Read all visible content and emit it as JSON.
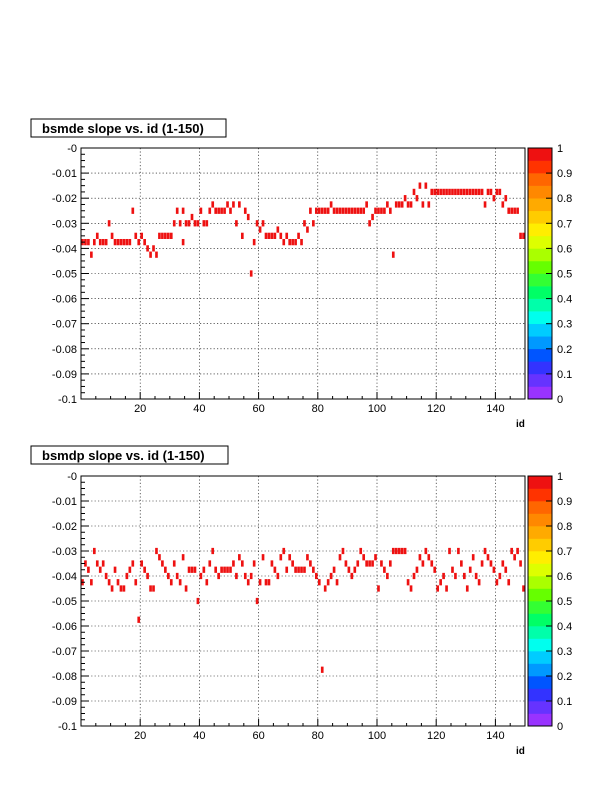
{
  "chart_data": [
    {
      "type": "heatmap",
      "title": "bsmde slope vs. id (1-150)",
      "xlabel": "id",
      "ylabel": "",
      "xlim": [
        0,
        150
      ],
      "ylim": [
        -0.1,
        0
      ],
      "x_ticks": [
        20,
        40,
        60,
        80,
        100,
        120,
        140
      ],
      "x_tick_labels": [
        "20",
        "40",
        "60",
        "80",
        "100",
        "120",
        "140"
      ],
      "y_ticks": [
        0,
        -0.01,
        -0.02,
        -0.03,
        -0.04,
        -0.05,
        -0.06,
        -0.07,
        -0.08,
        -0.09,
        -0.1
      ],
      "y_tick_labels": [
        "-0",
        "-0.01",
        "-0.02",
        "-0.03",
        "-0.04",
        "-0.05",
        "-0.06",
        "-0.07",
        "-0.08",
        "-0.09",
        "-0.1"
      ],
      "y_bin_width": 0.0025,
      "grid": true,
      "colorbar": {
        "range": [
          0,
          1
        ],
        "labels": [
          "0",
          "0.1",
          "0.2",
          "0.3",
          "0.4",
          "0.5",
          "0.6",
          "0.7",
          "0.8",
          "0.9",
          "1"
        ]
      },
      "cell_color": "#ee1111",
      "points": [
        [
          1,
          -0.0375
        ],
        [
          2,
          -0.0375
        ],
        [
          3,
          -0.0375
        ],
        [
          4,
          -0.0425
        ],
        [
          5,
          -0.0375
        ],
        [
          6,
          -0.035
        ],
        [
          7,
          -0.0375
        ],
        [
          8,
          -0.0375
        ],
        [
          9,
          -0.0375
        ],
        [
          10,
          -0.03
        ],
        [
          11,
          -0.035
        ],
        [
          12,
          -0.0375
        ],
        [
          13,
          -0.0375
        ],
        [
          14,
          -0.0375
        ],
        [
          15,
          -0.0375
        ],
        [
          16,
          -0.0375
        ],
        [
          17,
          -0.0375
        ],
        [
          18,
          -0.025
        ],
        [
          19,
          -0.035
        ],
        [
          20,
          -0.0375
        ],
        [
          21,
          -0.035
        ],
        [
          22,
          -0.0375
        ],
        [
          23,
          -0.04
        ],
        [
          24,
          -0.0425
        ],
        [
          25,
          -0.04
        ],
        [
          26,
          -0.0425
        ],
        [
          27,
          -0.035
        ],
        [
          28,
          -0.035
        ],
        [
          29,
          -0.035
        ],
        [
          30,
          -0.035
        ],
        [
          31,
          -0.035
        ],
        [
          32,
          -0.03
        ],
        [
          33,
          -0.025
        ],
        [
          34,
          -0.03
        ],
        [
          35,
          -0.025
        ],
        [
          35,
          -0.0375
        ],
        [
          36,
          -0.03
        ],
        [
          37,
          -0.03
        ],
        [
          38,
          -0.0275
        ],
        [
          39,
          -0.03
        ],
        [
          40,
          -0.03
        ],
        [
          41,
          -0.025
        ],
        [
          42,
          -0.03
        ],
        [
          43,
          -0.03
        ],
        [
          44,
          -0.025
        ],
        [
          45,
          -0.0225
        ],
        [
          46,
          -0.025
        ],
        [
          47,
          -0.025
        ],
        [
          48,
          -0.025
        ],
        [
          49,
          -0.025
        ],
        [
          50,
          -0.0225
        ],
        [
          51,
          -0.025
        ],
        [
          52,
          -0.0225
        ],
        [
          53,
          -0.03
        ],
        [
          54,
          -0.0225
        ],
        [
          55,
          -0.035
        ],
        [
          56,
          -0.025
        ],
        [
          57,
          -0.0275
        ],
        [
          58,
          -0.05
        ],
        [
          59,
          -0.0375
        ],
        [
          60,
          -0.03
        ],
        [
          61,
          -0.0325
        ],
        [
          62,
          -0.03
        ],
        [
          63,
          -0.035
        ],
        [
          64,
          -0.035
        ],
        [
          65,
          -0.035
        ],
        [
          66,
          -0.035
        ],
        [
          67,
          -0.0325
        ],
        [
          68,
          -0.035
        ],
        [
          69,
          -0.0375
        ],
        [
          70,
          -0.035
        ],
        [
          71,
          -0.0375
        ],
        [
          72,
          -0.0375
        ],
        [
          73,
          -0.0375
        ],
        [
          74,
          -0.035
        ],
        [
          75,
          -0.0375
        ],
        [
          76,
          -0.03
        ],
        [
          77,
          -0.0325
        ],
        [
          78,
          -0.025
        ],
        [
          79,
          -0.03
        ],
        [
          80,
          -0.025
        ],
        [
          81,
          -0.025
        ],
        [
          82,
          -0.025
        ],
        [
          83,
          -0.025
        ],
        [
          84,
          -0.025
        ],
        [
          85,
          -0.0225
        ],
        [
          86,
          -0.025
        ],
        [
          87,
          -0.025
        ],
        [
          88,
          -0.025
        ],
        [
          89,
          -0.025
        ],
        [
          90,
          -0.025
        ],
        [
          91,
          -0.025
        ],
        [
          92,
          -0.025
        ],
        [
          93,
          -0.025
        ],
        [
          94,
          -0.025
        ],
        [
          95,
          -0.025
        ],
        [
          96,
          -0.025
        ],
        [
          97,
          -0.0225
        ],
        [
          98,
          -0.03
        ],
        [
          99,
          -0.0275
        ],
        [
          100,
          -0.025
        ],
        [
          101,
          -0.025
        ],
        [
          102,
          -0.025
        ],
        [
          103,
          -0.025
        ],
        [
          104,
          -0.0225
        ],
        [
          105,
          -0.025
        ],
        [
          106,
          -0.0425
        ],
        [
          107,
          -0.0225
        ],
        [
          108,
          -0.0225
        ],
        [
          109,
          -0.0225
        ],
        [
          110,
          -0.02
        ],
        [
          111,
          -0.0225
        ],
        [
          112,
          -0.0225
        ],
        [
          113,
          -0.0175
        ],
        [
          114,
          -0.02
        ],
        [
          115,
          -0.015
        ],
        [
          116,
          -0.0225
        ],
        [
          117,
          -0.015
        ],
        [
          118,
          -0.0225
        ],
        [
          119,
          -0.0175
        ],
        [
          120,
          -0.0175
        ],
        [
          121,
          -0.0175
        ],
        [
          122,
          -0.0175
        ],
        [
          123,
          -0.0175
        ],
        [
          124,
          -0.0175
        ],
        [
          125,
          -0.0175
        ],
        [
          126,
          -0.0175
        ],
        [
          127,
          -0.0175
        ],
        [
          128,
          -0.0175
        ],
        [
          129,
          -0.0175
        ],
        [
          130,
          -0.0175
        ],
        [
          131,
          -0.0175
        ],
        [
          132,
          -0.0175
        ],
        [
          133,
          -0.0175
        ],
        [
          134,
          -0.0175
        ],
        [
          135,
          -0.0175
        ],
        [
          136,
          -0.0175
        ],
        [
          137,
          -0.0225
        ],
        [
          138,
          -0.0175
        ],
        [
          139,
          -0.0175
        ],
        [
          140,
          -0.02
        ],
        [
          141,
          -0.0175
        ],
        [
          142,
          -0.0175
        ],
        [
          143,
          -0.0225
        ],
        [
          144,
          -0.02
        ],
        [
          145,
          -0.025
        ],
        [
          146,
          -0.025
        ],
        [
          147,
          -0.025
        ],
        [
          148,
          -0.025
        ],
        [
          149,
          -0.035
        ],
        [
          150,
          -0.035
        ]
      ]
    },
    {
      "type": "heatmap",
      "title": "bsmdp slope vs. id (1-150)",
      "xlabel": "id",
      "ylabel": "",
      "xlim": [
        0,
        150
      ],
      "ylim": [
        -0.1,
        0
      ],
      "x_ticks": [
        20,
        40,
        60,
        80,
        100,
        120,
        140
      ],
      "x_tick_labels": [
        "20",
        "40",
        "60",
        "80",
        "100",
        "120",
        "140"
      ],
      "y_ticks": [
        0,
        -0.01,
        -0.02,
        -0.03,
        -0.04,
        -0.05,
        -0.06,
        -0.07,
        -0.08,
        -0.09,
        -0.1
      ],
      "y_tick_labels": [
        "-0",
        "-0.01",
        "-0.02",
        "-0.03",
        "-0.04",
        "-0.05",
        "-0.06",
        "-0.07",
        "-0.08",
        "-0.09",
        "-0.1"
      ],
      "y_bin_width": 0.0025,
      "grid": true,
      "colorbar": {
        "range": [
          0,
          1
        ],
        "labels": [
          "0",
          "0.1",
          "0.2",
          "0.3",
          "0.4",
          "0.5",
          "0.6",
          "0.7",
          "0.8",
          "0.9",
          "1"
        ]
      },
      "cell_color": "#ee1111",
      "points": [
        [
          1,
          -0.0425
        ],
        [
          2,
          -0.035
        ],
        [
          3,
          -0.0375
        ],
        [
          4,
          -0.0425
        ],
        [
          5,
          -0.03
        ],
        [
          6,
          -0.035
        ],
        [
          7,
          -0.0375
        ],
        [
          8,
          -0.035
        ],
        [
          9,
          -0.04
        ],
        [
          10,
          -0.0425
        ],
        [
          11,
          -0.045
        ],
        [
          12,
          -0.0375
        ],
        [
          13,
          -0.0425
        ],
        [
          14,
          -0.045
        ],
        [
          15,
          -0.045
        ],
        [
          16,
          -0.04
        ],
        [
          17,
          -0.0375
        ],
        [
          18,
          -0.035
        ],
        [
          19,
          -0.0425
        ],
        [
          20,
          -0.0575
        ],
        [
          21,
          -0.035
        ],
        [
          22,
          -0.0375
        ],
        [
          23,
          -0.04
        ],
        [
          24,
          -0.045
        ],
        [
          25,
          -0.045
        ],
        [
          26,
          -0.03
        ],
        [
          27,
          -0.0325
        ],
        [
          28,
          -0.035
        ],
        [
          29,
          -0.0375
        ],
        [
          30,
          -0.04
        ],
        [
          31,
          -0.0425
        ],
        [
          32,
          -0.035
        ],
        [
          33,
          -0.04
        ],
        [
          34,
          -0.0425
        ],
        [
          35,
          -0.0325
        ],
        [
          36,
          -0.045
        ],
        [
          37,
          -0.0375
        ],
        [
          38,
          -0.0375
        ],
        [
          39,
          -0.0375
        ],
        [
          40,
          -0.05
        ],
        [
          41,
          -0.04
        ],
        [
          42,
          -0.0375
        ],
        [
          43,
          -0.0425
        ],
        [
          44,
          -0.035
        ],
        [
          45,
          -0.03
        ],
        [
          46,
          -0.0375
        ],
        [
          47,
          -0.04
        ],
        [
          48,
          -0.0375
        ],
        [
          49,
          -0.0375
        ],
        [
          50,
          -0.0375
        ],
        [
          51,
          -0.0375
        ],
        [
          52,
          -0.035
        ],
        [
          53,
          -0.04
        ],
        [
          54,
          -0.0325
        ],
        [
          55,
          -0.035
        ],
        [
          56,
          -0.04
        ],
        [
          57,
          -0.0425
        ],
        [
          58,
          -0.04
        ],
        [
          59,
          -0.035
        ],
        [
          60,
          -0.05
        ],
        [
          61,
          -0.0425
        ],
        [
          62,
          -0.0325
        ],
        [
          63,
          -0.0425
        ],
        [
          64,
          -0.0425
        ],
        [
          65,
          -0.035
        ],
        [
          66,
          -0.0375
        ],
        [
          67,
          -0.04
        ],
        [
          68,
          -0.0325
        ],
        [
          69,
          -0.03
        ],
        [
          70,
          -0.0375
        ],
        [
          71,
          -0.0325
        ],
        [
          72,
          -0.035
        ],
        [
          73,
          -0.0375
        ],
        [
          74,
          -0.0375
        ],
        [
          75,
          -0.0375
        ],
        [
          76,
          -0.0375
        ],
        [
          77,
          -0.0325
        ],
        [
          78,
          -0.035
        ],
        [
          79,
          -0.0375
        ],
        [
          80,
          -0.04
        ],
        [
          81,
          -0.0425
        ],
        [
          82,
          -0.0775
        ],
        [
          83,
          -0.045
        ],
        [
          84,
          -0.0425
        ],
        [
          85,
          -0.04
        ],
        [
          86,
          -0.0375
        ],
        [
          87,
          -0.0425
        ],
        [
          88,
          -0.0325
        ],
        [
          89,
          -0.03
        ],
        [
          90,
          -0.035
        ],
        [
          91,
          -0.0375
        ],
        [
          92,
          -0.04
        ],
        [
          93,
          -0.0375
        ],
        [
          94,
          -0.035
        ],
        [
          95,
          -0.03
        ],
        [
          96,
          -0.0325
        ],
        [
          97,
          -0.035
        ],
        [
          98,
          -0.035
        ],
        [
          99,
          -0.035
        ],
        [
          100,
          -0.0325
        ],
        [
          101,
          -0.045
        ],
        [
          102,
          -0.035
        ],
        [
          103,
          -0.0375
        ],
        [
          104,
          -0.04
        ],
        [
          105,
          -0.035
        ],
        [
          106,
          -0.03
        ],
        [
          107,
          -0.03
        ],
        [
          108,
          -0.03
        ],
        [
          109,
          -0.03
        ],
        [
          110,
          -0.03
        ],
        [
          111,
          -0.0425
        ],
        [
          112,
          -0.045
        ],
        [
          113,
          -0.04
        ],
        [
          114,
          -0.0375
        ],
        [
          115,
          -0.0325
        ],
        [
          116,
          -0.035
        ],
        [
          117,
          -0.03
        ],
        [
          118,
          -0.0325
        ],
        [
          119,
          -0.035
        ],
        [
          120,
          -0.0375
        ],
        [
          121,
          -0.045
        ],
        [
          122,
          -0.0425
        ],
        [
          123,
          -0.04
        ],
        [
          124,
          -0.045
        ],
        [
          125,
          -0.03
        ],
        [
          126,
          -0.0375
        ],
        [
          127,
          -0.04
        ],
        [
          128,
          -0.03
        ],
        [
          129,
          -0.035
        ],
        [
          130,
          -0.04
        ],
        [
          131,
          -0.045
        ],
        [
          132,
          -0.0375
        ],
        [
          133,
          -0.0325
        ],
        [
          134,
          -0.04
        ],
        [
          135,
          -0.0425
        ],
        [
          136,
          -0.035
        ],
        [
          137,
          -0.03
        ],
        [
          138,
          -0.0325
        ],
        [
          139,
          -0.035
        ],
        [
          140,
          -0.0375
        ],
        [
          141,
          -0.0425
        ],
        [
          142,
          -0.04
        ],
        [
          143,
          -0.035
        ],
        [
          144,
          -0.0375
        ],
        [
          145,
          -0.0425
        ],
        [
          146,
          -0.03
        ],
        [
          147,
          -0.0325
        ],
        [
          148,
          -0.03
        ],
        [
          149,
          -0.035
        ],
        [
          150,
          -0.045
        ]
      ]
    }
  ]
}
